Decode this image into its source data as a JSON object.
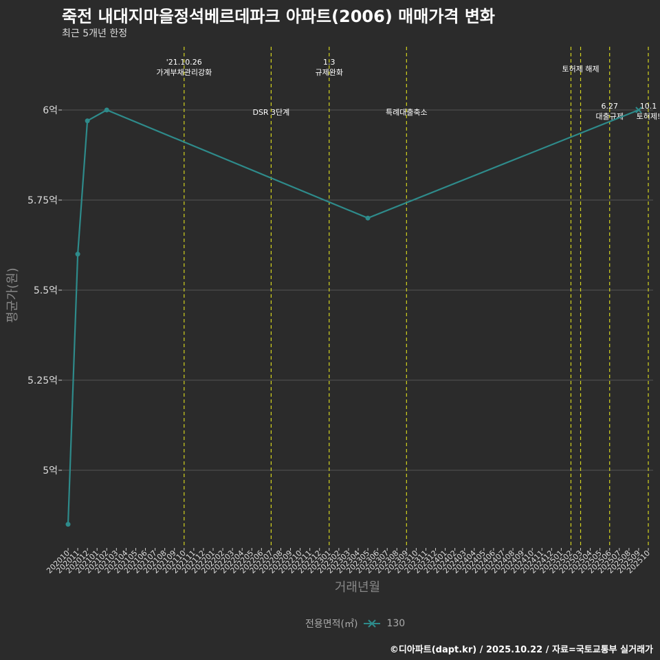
{
  "title": "죽전 내대지마을정석베르데파크 아파트(2006) 매매가격 변화",
  "subtitle": "최근 5개년 한정",
  "caption": "©디아파트(dapt.kr) / 2025.10.22 / 자료=국토교통부 실거래가",
  "colors": {
    "background": "#2b2b2b",
    "series": "#2e8b8b",
    "event_line": "#d4d41e",
    "grid": "#555555",
    "axis_text": "#cccccc"
  },
  "chart_data": {
    "type": "line",
    "xlabel": "거래년월",
    "ylabel": "평균가(원)",
    "ylim": [
      4.83,
      6.1
    ],
    "y_ticks": [
      {
        "value": 5.0,
        "label": "5억"
      },
      {
        "value": 5.25,
        "label": "5.25억"
      },
      {
        "value": 5.5,
        "label": "5.5억"
      },
      {
        "value": 5.75,
        "label": "5.75억"
      },
      {
        "value": 6.0,
        "label": "6억"
      }
    ],
    "x_categories": [
      "202010",
      "202011",
      "202012",
      "202101",
      "202102",
      "202103",
      "202104",
      "202105",
      "202106",
      "202107",
      "202108",
      "202109",
      "202110",
      "202111",
      "202112",
      "202201",
      "202202",
      "202203",
      "202204",
      "202205",
      "202206",
      "202207",
      "202208",
      "202209",
      "202210",
      "202211",
      "202212",
      "202301",
      "202302",
      "202303",
      "202304",
      "202305",
      "202306",
      "202307",
      "202308",
      "202309",
      "202310",
      "202311",
      "202312",
      "202401",
      "202402",
      "202403",
      "202404",
      "202405",
      "202406",
      "202407",
      "202408",
      "202409",
      "202410",
      "202411",
      "202412",
      "202501",
      "202502",
      "202503",
      "202504",
      "202505",
      "202506",
      "202507",
      "202508",
      "202509",
      "202510"
    ],
    "x_tick_labels": [
      "202010",
      "202011",
      "202012",
      "202101",
      "202102",
      "202103",
      "202104",
      "202105",
      "202106",
      "202107",
      "202108",
      "202109",
      "202110",
      "202111",
      "202112",
      "202201",
      "202202",
      "202203",
      "202204",
      "202205",
      "202206",
      "202207",
      "202208",
      "202209",
      "202210",
      "202211",
      "202212",
      "202301",
      "202302",
      "202303",
      "202304",
      "202305",
      "202306",
      "202307",
      "202308",
      "202309",
      "202310",
      "202311",
      "202312",
      "202401",
      "202402",
      "202403",
      "202404",
      "202405",
      "202406",
      "202407",
      "202408",
      "202409",
      "202410",
      "202411",
      "202412",
      "202501",
      "202502",
      "202503",
      "202504",
      "202505",
      "202506",
      "202507",
      "202508",
      "202509",
      "202510"
    ],
    "series": [
      {
        "name": "130",
        "points": [
          {
            "x": "202010",
            "y": 4.85
          },
          {
            "x": "202011",
            "y": 5.6
          },
          {
            "x": "202012",
            "y": 5.97
          },
          {
            "x": "202102",
            "y": 6.0
          },
          {
            "x": "202305",
            "y": 5.7
          },
          {
            "x": "202509",
            "y": 6.0
          }
        ]
      }
    ],
    "events": [
      {
        "x": "202110",
        "lines": [
          "'21.10.26",
          "가계부채관리강화"
        ],
        "row": "top"
      },
      {
        "x": "202207",
        "lines": [
          "DSR 3단계"
        ],
        "row": "bottom"
      },
      {
        "x": "202301",
        "lines": [
          "1.3",
          "규제완화"
        ],
        "row": "top"
      },
      {
        "x": "202309",
        "lines": [
          "특례대출축소"
        ],
        "row": "bottom"
      },
      {
        "x": "202502",
        "lines": [],
        "row": "top"
      },
      {
        "x": "202503",
        "lines": [
          "토허제 해제"
        ],
        "row": "top"
      },
      {
        "x": "202506",
        "lines": [
          "6.27",
          "대출규제"
        ],
        "row": "bottom"
      },
      {
        "x": "202510",
        "lines": [
          "10.1",
          "토허제!"
        ],
        "row": "bottom"
      }
    ],
    "legend": {
      "title": "전용면적(㎡)",
      "entries": [
        "130"
      ],
      "placement": "bottom"
    }
  }
}
